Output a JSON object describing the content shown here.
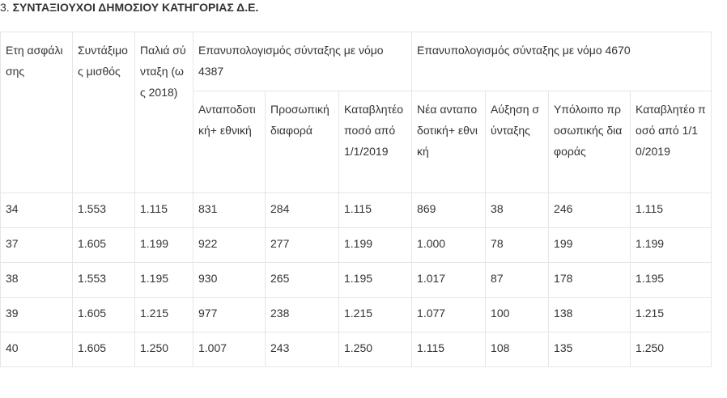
{
  "heading": {
    "number": "3.",
    "text": "ΣΥΝΤΑΞΙΟΥΧΟΙ ΔΗΜΟΣΙΟΥ ΚΑΤΗΓΟΡΙΑΣ Δ.Ε."
  },
  "table": {
    "col_years": "Ετη ασφάλισης",
    "col_salary": "Συντάξιμος μισθός",
    "col_old": "Παλιά σύνταξη (ως 2018)",
    "group_4387": "Επανυπολογισμός σύνταξης με νόμο 4387",
    "group_4670": "Επανυπολογισμός σύνταξης με νόμο 4670",
    "sub_4387": [
      "Ανταποδοτική+ εθνική",
      "Προσωπική διαφορά",
      "Καταβλητέο ποσό από 1/1/2019"
    ],
    "sub_4670": [
      "Νέα ανταποδοτική+ εθνική",
      "Αύξηση σύνταξης",
      "Υπόλοιπο προσωπικής διαφοράς",
      "Καταβλητέο ποσό από 1/10/2019"
    ],
    "rows": [
      [
        "34",
        "1.553",
        "1.115",
        "831",
        "284",
        "1.115",
        "869",
        "38",
        "246",
        "1.115"
      ],
      [
        "37",
        "1.605",
        "1.199",
        "922",
        "277",
        "1.199",
        "1.000",
        "78",
        "199",
        "1.199"
      ],
      [
        "38",
        "1.553",
        "1.195",
        "930",
        "265",
        "1.195",
        "1.017",
        "87",
        "178",
        "1.195"
      ],
      [
        "39",
        "1.605",
        "1.215",
        "977",
        "238",
        "1.215",
        "1.077",
        "100",
        "138",
        "1.215"
      ],
      [
        "40",
        "1.605",
        "1.250",
        "1.007",
        "243",
        "1.250",
        "1.115",
        "108",
        "135",
        "1.250"
      ]
    ]
  }
}
